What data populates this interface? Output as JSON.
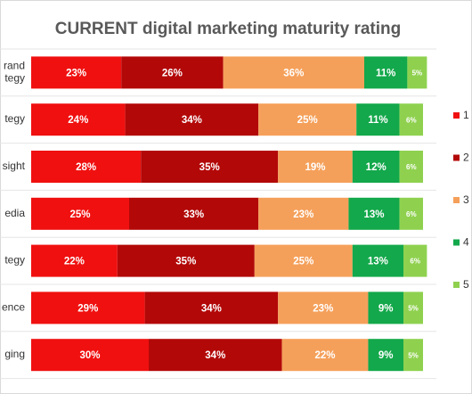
{
  "chart_data": {
    "type": "stacked-bar-horizontal",
    "title": "CURRENT digital marketing maturity rating",
    "categories": [
      [
        "rand",
        "tegy"
      ],
      [
        "tegy"
      ],
      [
        "sight"
      ],
      [
        "edia"
      ],
      [
        "tegy"
      ],
      [
        "ence"
      ],
      [
        "ging"
      ]
    ],
    "xlim": [
      0,
      100
    ],
    "series": [
      {
        "name": "1 -",
        "color": "#f01010",
        "values": [
          23,
          24,
          28,
          25,
          22,
          29,
          30
        ],
        "value_labels": [
          "23%",
          "24%",
          "28%",
          "25%",
          "22%",
          "29%",
          "30%"
        ]
      },
      {
        "name": "2 -",
        "color": "#b30808",
        "values": [
          26,
          34,
          35,
          33,
          35,
          34,
          34
        ],
        "value_labels": [
          "26%",
          "34%",
          "35%",
          "33%",
          "35%",
          "34%",
          "34%"
        ]
      },
      {
        "name": "3 -",
        "color": "#f5a05a",
        "values": [
          36,
          25,
          19,
          23,
          25,
          23,
          22
        ],
        "value_labels": [
          "36%",
          "25%",
          "19%",
          "23%",
          "25%",
          "23%",
          "22%"
        ]
      },
      {
        "name": "4 -",
        "color": "#13a84b",
        "values": [
          11,
          11,
          12,
          13,
          13,
          9,
          9
        ],
        "value_labels": [
          "11%",
          "11%",
          "12%",
          "13%",
          "13%",
          "9%",
          "9%"
        ]
      },
      {
        "name": "5 -",
        "color": "#8fd14f",
        "values": [
          5,
          6,
          6,
          6,
          6,
          5,
          5
        ],
        "value_labels": [
          "5%",
          "6%",
          "6%",
          "6%",
          "6%",
          "5%",
          "5%"
        ]
      }
    ]
  }
}
